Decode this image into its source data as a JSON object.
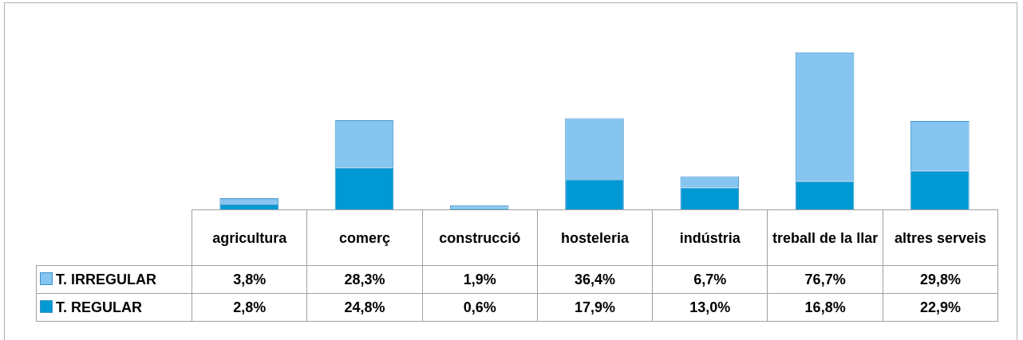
{
  "chart_data": {
    "type": "bar",
    "stacked": true,
    "legend": "bottom left",
    "categories": [
      "agricultura",
      "comerç",
      "construcció",
      "hosteleria",
      "indústria",
      "treball de la llar",
      "altres serveis"
    ],
    "series": [
      {
        "name": "T. REGULAR",
        "color": "#0099d4",
        "values": [
          2.8,
          24.8,
          0.6,
          17.9,
          13.0,
          16.8,
          22.9
        ],
        "value_labels": [
          "2,8%",
          "24,8%",
          "0,6%",
          "17,9%",
          "13,0%",
          "16,8%",
          "22,9%"
        ]
      },
      {
        "name": "T. IRREGULAR",
        "color": "#85c5f0",
        "values": [
          3.8,
          28.3,
          1.9,
          36.4,
          6.7,
          76.7,
          29.8
        ],
        "value_labels": [
          "3,8%",
          "28,3%",
          "1,9%",
          "36,4%",
          "6,7%",
          "76,7%",
          "29,8%"
        ]
      }
    ]
  }
}
